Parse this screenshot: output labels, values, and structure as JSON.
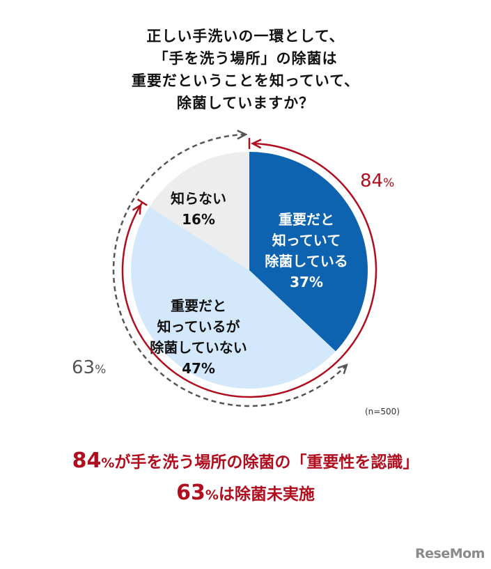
{
  "title_lines": [
    "正しい手洗いの一環として、",
    "「手を洗う場所」の除菌は",
    "重要だということを知っていて、",
    "除菌していますか？"
  ],
  "chart_data": {
    "type": "pie",
    "slices": [
      {
        "label_lines": [
          "重要だと",
          "知っていて",
          "除菌している"
        ],
        "value": 37,
        "value_label": "37%",
        "color": "#0e63b0",
        "text_color": "#ffffff"
      },
      {
        "label_lines": [
          "重要だと",
          "知っているが",
          "除菌していない"
        ],
        "value": 47,
        "value_label": "47%",
        "color": "#d3e8fa",
        "text_color": "#111111"
      },
      {
        "label_lines": [
          "知らない"
        ],
        "value": 16,
        "value_label": "16%",
        "color": "#ededed",
        "text_color": "#111111"
      }
    ],
    "annotations": [
      {
        "value": "84",
        "unit": "%",
        "color": "#b00d1e"
      },
      {
        "value": "63",
        "unit": "%",
        "color": "#555555"
      }
    ],
    "note": "(n=500)"
  },
  "summary": {
    "line1_value": "84",
    "line1_unit": "%",
    "line1_text": "が手を洗う場所の除菌の「重要性を認識」",
    "line2_value": "63",
    "line2_unit": "%",
    "line2_text": "は除菌未実施",
    "color": "#b00d1e"
  },
  "logo": "ReseMom"
}
